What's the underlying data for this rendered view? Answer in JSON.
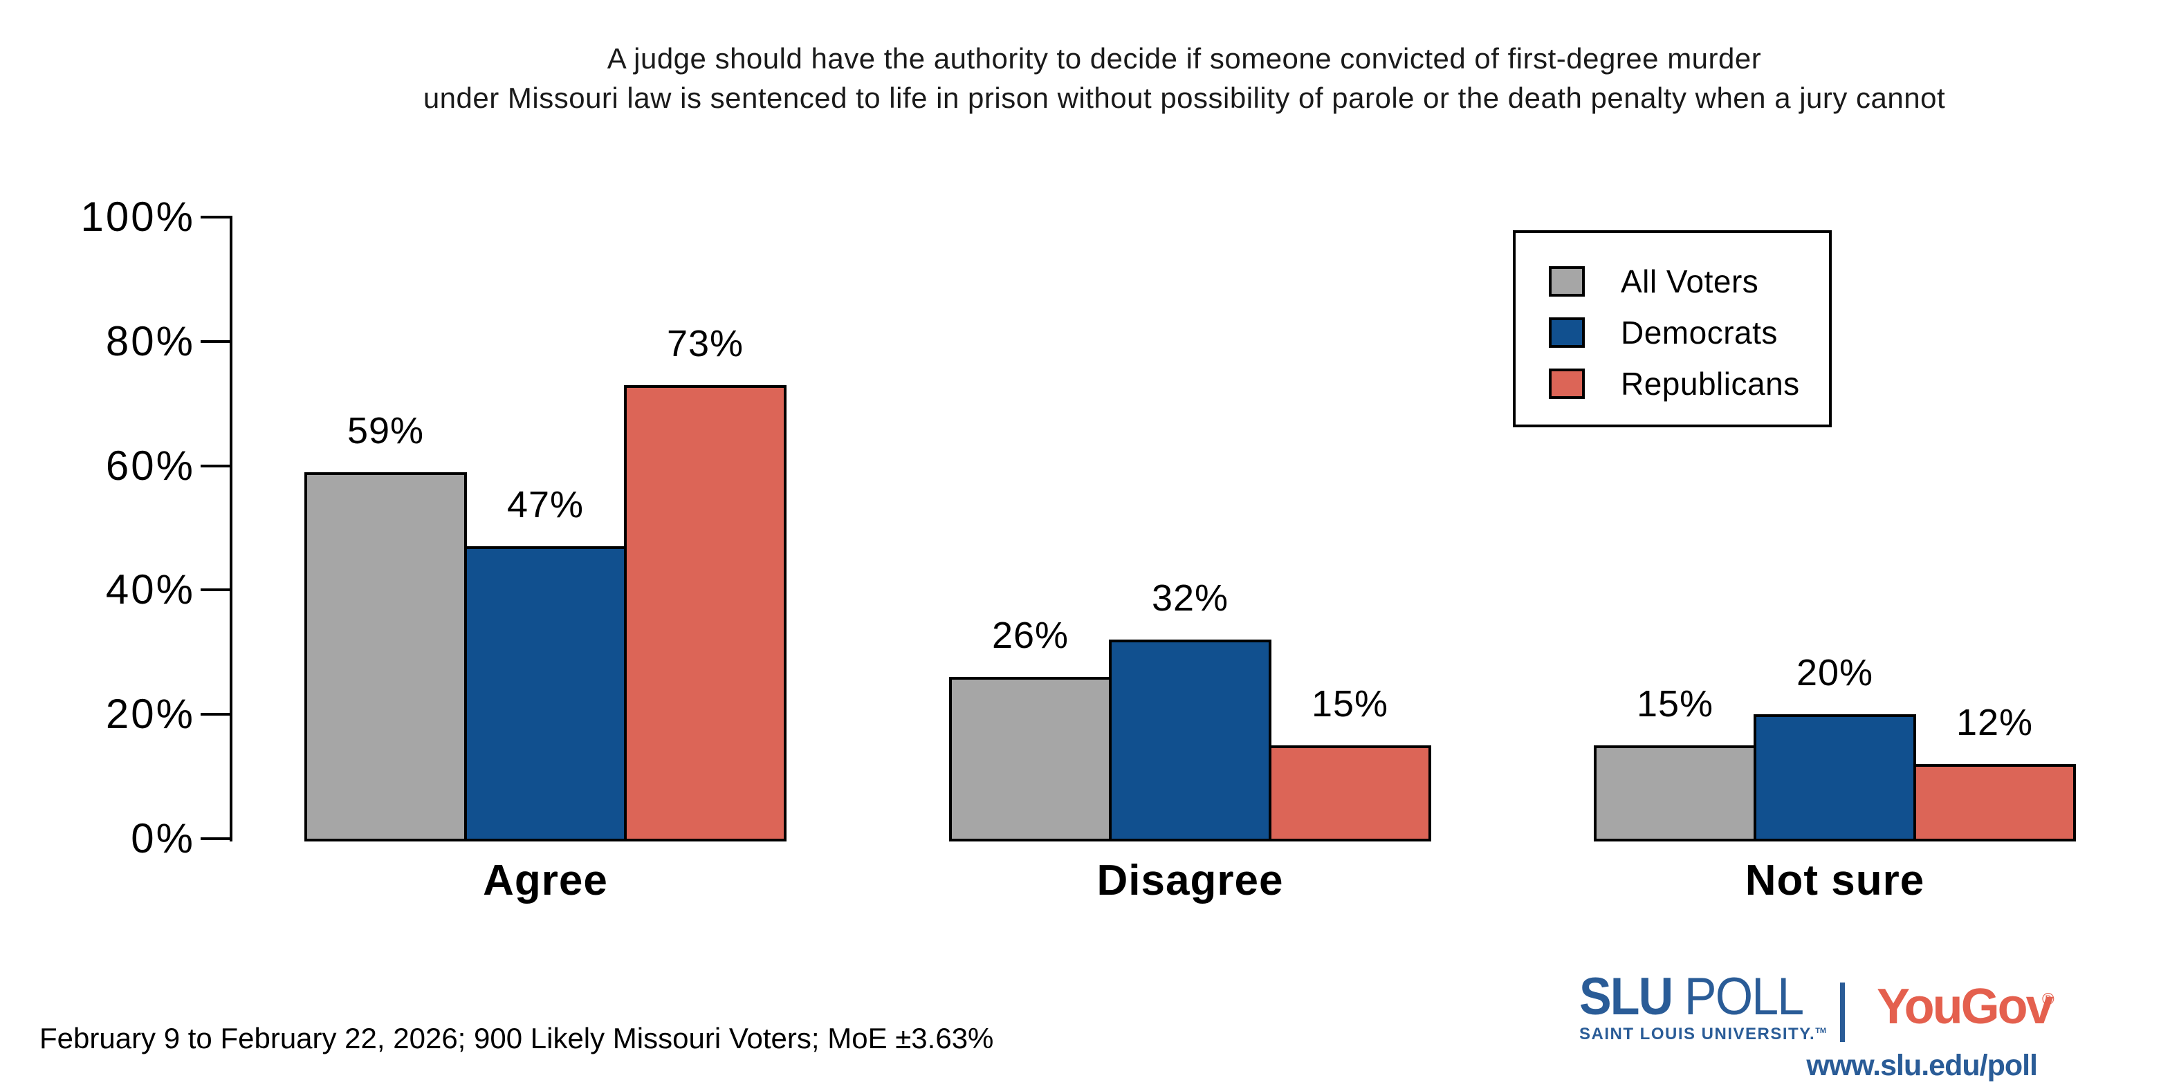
{
  "title": {
    "line1": "A judge should have the authority to decide if someone convicted of first-degree murder",
    "line2": "under Missouri law is sentenced to life in prison without possibility of parole or the death penalty when a jury cannot"
  },
  "chart_data": {
    "type": "bar",
    "categories": [
      "Agree",
      "Disagree",
      "Not sure"
    ],
    "series": [
      {
        "name": "All Voters",
        "color": "#A6A6A6",
        "values": [
          59,
          26,
          15
        ]
      },
      {
        "name": "Democrats",
        "color": "#11508F",
        "values": [
          47,
          32,
          20
        ]
      },
      {
        "name": "Republicans",
        "color": "#DC6557",
        "values": [
          73,
          15,
          12
        ]
      }
    ],
    "value_labels": [
      [
        "59%",
        "26%",
        "15%"
      ],
      [
        "47%",
        "32%",
        "20%"
      ],
      [
        "73%",
        "15%",
        "12%"
      ]
    ],
    "title": "A judge should have the authority to decide if someone convicted of first-degree murder under Missouri law is sentenced to life in prison without possibility of parole or the death penalty when a jury cannot",
    "xlabel": "",
    "ylabel": "",
    "ylim": [
      0,
      100
    ],
    "yticks": [
      "0%",
      "20%",
      "40%",
      "60%",
      "80%",
      "100%"
    ],
    "grid": false,
    "legend_position": "upper right",
    "bar_edge_color": "#000000"
  },
  "footer": {
    "text": "February 9 to February 22, 2026; 900 Likely Missouri Voters; MoE ±3.63%"
  },
  "branding": {
    "slu": "SLU",
    "poll": "POLL",
    "university": "SAINT LOUIS UNIVERSITY.",
    "university_tm": "TM",
    "yougov": "YouGov",
    "registered": "®",
    "url": "www.slu.edu/poll",
    "slu_blue": "#2A5C97",
    "yougov_red": "#E4604E"
  }
}
